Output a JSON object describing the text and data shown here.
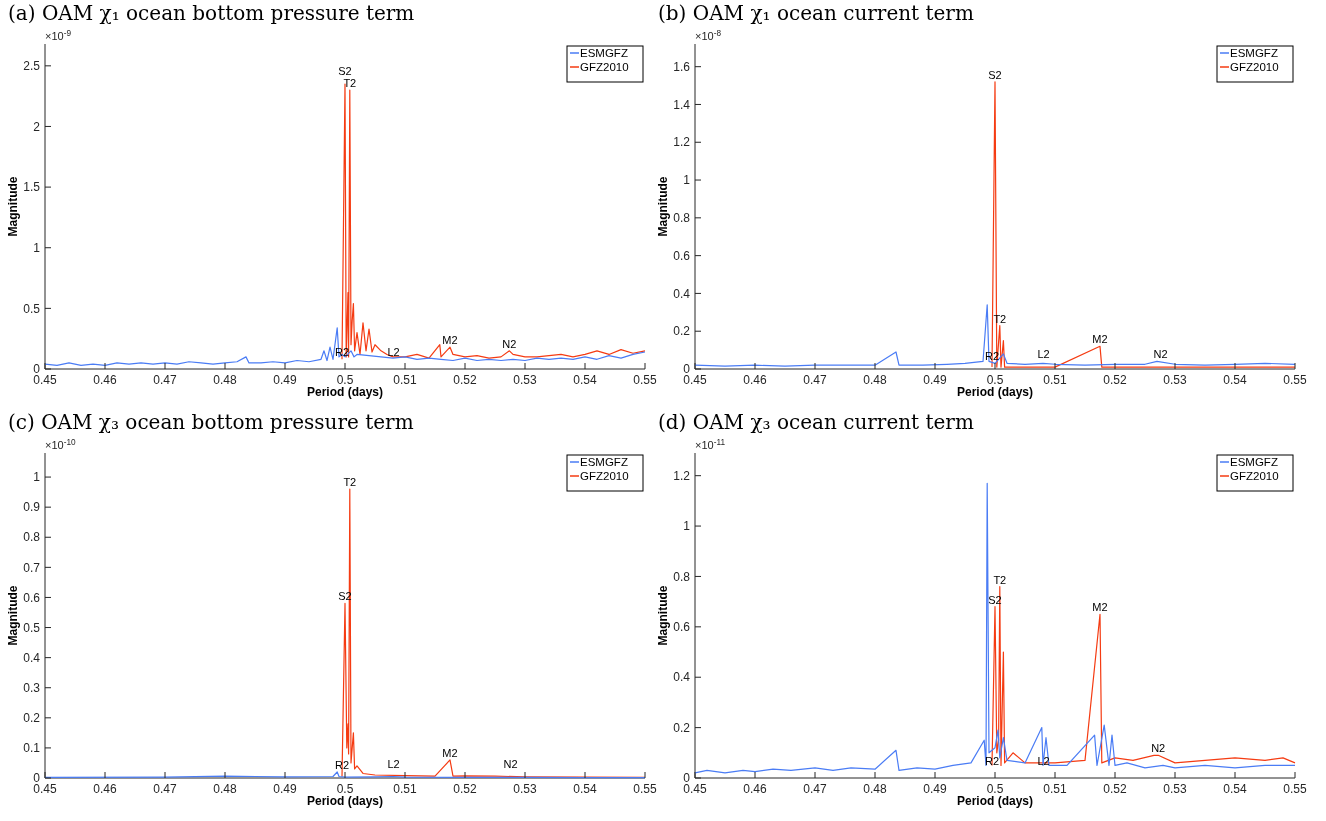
{
  "chart_data": [
    {
      "type": "line",
      "title": "(a) OAM χ₁ ocean bottom pressure term",
      "xlabel": "Period (days)",
      "ylabel": "Magnitude",
      "xlim": [
        0.45,
        0.55
      ],
      "xticks": [
        0.45,
        0.46,
        0.47,
        0.48,
        0.49,
        0.5,
        0.51,
        0.52,
        0.53,
        0.54,
        0.55
      ],
      "ylim": [
        0,
        2.68
      ],
      "yticks": [
        0,
        0.5,
        1,
        1.5,
        2,
        2.5
      ],
      "legend": "top right",
      "series": [
        {
          "name": "ESMGFZ",
          "color": "#4a7cf5",
          "x": [
            0.45,
            0.452,
            0.454,
            0.456,
            0.458,
            0.46,
            0.462,
            0.464,
            0.466,
            0.468,
            0.47,
            0.472,
            0.474,
            0.476,
            0.478,
            0.48,
            0.482,
            0.4835,
            0.484,
            0.486,
            0.488,
            0.49,
            0.492,
            0.494,
            0.496,
            0.4965,
            0.497,
            0.4975,
            0.498,
            0.4987,
            0.499,
            0.4995,
            0.5,
            0.501,
            0.5015,
            0.502,
            0.504,
            0.506,
            0.508,
            0.51,
            0.512,
            0.514,
            0.516,
            0.518,
            0.52,
            0.522,
            0.524,
            0.526,
            0.528,
            0.53,
            0.532,
            0.534,
            0.536,
            0.538,
            0.54,
            0.542,
            0.544,
            0.546,
            0.548,
            0.55
          ],
          "values": [
            0.04,
            0.03,
            0.05,
            0.03,
            0.04,
            0.03,
            0.05,
            0.04,
            0.05,
            0.04,
            0.05,
            0.04,
            0.06,
            0.05,
            0.04,
            0.05,
            0.06,
            0.1,
            0.05,
            0.05,
            0.06,
            0.05,
            0.07,
            0.06,
            0.08,
            0.15,
            0.07,
            0.18,
            0.08,
            0.34,
            0.1,
            0.12,
            0.1,
            0.15,
            0.1,
            0.12,
            0.11,
            0.1,
            0.09,
            0.1,
            0.08,
            0.09,
            0.08,
            0.07,
            0.09,
            0.07,
            0.08,
            0.07,
            0.08,
            0.07,
            0.09,
            0.08,
            0.09,
            0.08,
            0.1,
            0.08,
            0.11,
            0.09,
            0.12,
            0.14
          ]
        },
        {
          "name": "GFZ2010",
          "color": "#f53b12",
          "x": [
            0.4995,
            0.5,
            0.5002,
            0.5005,
            0.5006,
            0.5008,
            0.501,
            0.5012,
            0.5014,
            0.5016,
            0.502,
            0.5025,
            0.503,
            0.5035,
            0.504,
            0.5045,
            0.505,
            0.506,
            0.507,
            0.508,
            0.51,
            0.512,
            0.514,
            0.5158,
            0.516,
            0.5175,
            0.518,
            0.52,
            0.522,
            0.524,
            0.526,
            0.5274,
            0.528,
            0.53,
            0.532,
            0.534,
            0.536,
            0.538,
            0.54,
            0.542,
            0.544,
            0.546,
            0.548,
            0.55
          ],
          "values": [
            0.08,
            2.35,
            0.1,
            0.63,
            0.1,
            2.3,
            0.2,
            0.4,
            0.54,
            0.15,
            0.3,
            0.12,
            0.38,
            0.15,
            0.33,
            0.14,
            0.2,
            0.15,
            0.12,
            0.1,
            0.1,
            0.12,
            0.09,
            0.2,
            0.1,
            0.18,
            0.12,
            0.1,
            0.11,
            0.09,
            0.1,
            0.15,
            0.12,
            0.1,
            0.1,
            0.11,
            0.12,
            0.1,
            0.12,
            0.15,
            0.12,
            0.16,
            0.13,
            0.15
          ]
        }
      ],
      "annotations": [
        "×10$^{-9}$",
        {
          "text": "S2",
          "x": 0.5,
          "y": 2.35
        },
        {
          "text": "T2",
          "x": 0.5008,
          "y": 2.3
        },
        {
          "text": "R2",
          "x": 0.4995,
          "y": 0.08
        },
        {
          "text": "L2",
          "x": 0.5081,
          "y": 0.08
        },
        {
          "text": "M2",
          "x": 0.5175,
          "y": 0.18
        },
        {
          "text": "N2",
          "x": 0.5274,
          "y": 0.15
        }
      ]
    },
    {
      "type": "line",
      "title": "(b) OAM χ₁ ocean current term",
      "xlabel": "Period (days)",
      "ylabel": "Magnitude",
      "xlim": [
        0.45,
        0.55
      ],
      "xticks": [
        0.45,
        0.46,
        0.47,
        0.48,
        0.49,
        0.5,
        0.51,
        0.52,
        0.53,
        0.54,
        0.55
      ],
      "ylim": [
        0,
        1.72
      ],
      "yticks": [
        0,
        0.2,
        0.4,
        0.6,
        0.8,
        1,
        1.2,
        1.4,
        1.6
      ],
      "legend": "top right",
      "series": [
        {
          "name": "ESMGFZ",
          "color": "#4a7cf5",
          "x": [
            0.45,
            0.455,
            0.46,
            0.465,
            0.47,
            0.475,
            0.48,
            0.4835,
            0.484,
            0.488,
            0.492,
            0.495,
            0.498,
            0.4987,
            0.499,
            0.5,
            0.5014,
            0.502,
            0.505,
            0.508,
            0.51,
            0.515,
            0.52,
            0.525,
            0.527,
            0.53,
            0.535,
            0.54,
            0.545,
            0.55
          ],
          "values": [
            0.02,
            0.015,
            0.02,
            0.015,
            0.02,
            0.02,
            0.02,
            0.09,
            0.02,
            0.02,
            0.025,
            0.03,
            0.04,
            0.34,
            0.04,
            0.03,
            0.08,
            0.03,
            0.025,
            0.03,
            0.025,
            0.02,
            0.025,
            0.025,
            0.04,
            0.025,
            0.02,
            0.025,
            0.03,
            0.025
          ]
        },
        {
          "name": "GFZ2010",
          "color": "#f53b12",
          "x": [
            0.4995,
            0.5,
            0.5003,
            0.5008,
            0.501,
            0.5014,
            0.5016,
            0.505,
            0.51,
            0.5175,
            0.5178,
            0.52,
            0.53,
            0.54,
            0.55
          ],
          "values": [
            0.01,
            1.52,
            0.01,
            0.23,
            0.01,
            0.15,
            0.01,
            0.01,
            0.01,
            0.12,
            0.01,
            0.01,
            0.01,
            0.01,
            0.01
          ]
        }
      ],
      "annotations": [
        "×10$^{-8}$",
        {
          "text": "S2",
          "x": 0.5,
          "y": 1.52
        },
        {
          "text": "T2",
          "x": 0.5008,
          "y": 0.23
        },
        {
          "text": "R2",
          "x": 0.4995,
          "y": 0.03
        },
        {
          "text": "L2",
          "x": 0.5081,
          "y": 0.04
        },
        {
          "text": "M2",
          "x": 0.5175,
          "y": 0.12
        },
        {
          "text": "N2",
          "x": 0.5276,
          "y": 0.04
        }
      ]
    },
    {
      "type": "line",
      "title": "(c) OAM χ₃ ocean bottom pressure term",
      "xlabel": "Period (days)",
      "ylabel": "Magnitude",
      "xlim": [
        0.45,
        0.55
      ],
      "xticks": [
        0.45,
        0.46,
        0.47,
        0.48,
        0.49,
        0.5,
        0.51,
        0.52,
        0.53,
        0.54,
        0.55
      ],
      "ylim": [
        0,
        1.08
      ],
      "yticks": [
        0,
        0.1,
        0.2,
        0.3,
        0.4,
        0.5,
        0.6,
        0.7,
        0.8,
        0.9,
        1
      ],
      "legend": "top right",
      "series": [
        {
          "name": "ESMGFZ",
          "color": "#4a7cf5",
          "x": [
            0.45,
            0.47,
            0.48,
            0.49,
            0.498,
            0.4987,
            0.499,
            0.5,
            0.505,
            0.508,
            0.51,
            0.52,
            0.53,
            0.54,
            0.55
          ],
          "values": [
            0.002,
            0.003,
            0.006,
            0.004,
            0.005,
            0.02,
            0.005,
            0.003,
            0.004,
            0.005,
            0.003,
            0.002,
            0.002,
            0.001,
            0.001
          ]
        },
        {
          "name": "GFZ2010",
          "color": "#f53b12",
          "x": [
            0.4995,
            0.5,
            0.5003,
            0.5005,
            0.5006,
            0.5008,
            0.501,
            0.5014,
            0.5016,
            0.502,
            0.503,
            0.505,
            0.51,
            0.515,
            0.5175,
            0.518,
            0.52,
            0.525,
            0.53,
            0.54,
            0.55
          ],
          "values": [
            0.005,
            0.58,
            0.1,
            0.18,
            0.08,
            0.96,
            0.05,
            0.15,
            0.03,
            0.04,
            0.015,
            0.01,
            0.008,
            0.006,
            0.06,
            0.006,
            0.007,
            0.006,
            0.004,
            0.003,
            0.002
          ]
        }
      ],
      "annotations": [
        "×10$^{-10}$",
        {
          "text": "T2",
          "x": 0.5008,
          "y": 0.96
        },
        {
          "text": "S2",
          "x": 0.5,
          "y": 0.58
        },
        {
          "text": "R2",
          "x": 0.4995,
          "y": 0.02
        },
        {
          "text": "L2",
          "x": 0.5081,
          "y": 0.023
        },
        {
          "text": "M2",
          "x": 0.5175,
          "y": 0.06
        },
        {
          "text": "N2",
          "x": 0.5276,
          "y": 0.023
        }
      ]
    },
    {
      "type": "line",
      "title": "(d) OAM χ₃ ocean current term",
      "xlabel": "Period (days)",
      "ylabel": "Magnitude",
      "xlim": [
        0.45,
        0.55
      ],
      "xticks": [
        0.45,
        0.46,
        0.47,
        0.48,
        0.49,
        0.5,
        0.51,
        0.52,
        0.53,
        0.54,
        0.55
      ],
      "ylim": [
        0,
        1.29
      ],
      "yticks": [
        0,
        0.2,
        0.4,
        0.6,
        0.8,
        1,
        1.2
      ],
      "legend": "top right",
      "series": [
        {
          "name": "ESMGFZ",
          "color": "#4a7cf5",
          "x": [
            0.45,
            0.452,
            0.455,
            0.458,
            0.46,
            0.463,
            0.466,
            0.47,
            0.473,
            0.476,
            0.48,
            0.4835,
            0.484,
            0.487,
            0.49,
            0.493,
            0.496,
            0.4982,
            0.4985,
            0.4987,
            0.499,
            0.5,
            0.5005,
            0.5008,
            0.5014,
            0.502,
            0.505,
            0.5078,
            0.508,
            0.5085,
            0.509,
            0.512,
            0.5166,
            0.517,
            0.5182,
            0.519,
            0.5195,
            0.52,
            0.522,
            0.525,
            0.528,
            0.53,
            0.535,
            0.54,
            0.545,
            0.55
          ],
          "values": [
            0.02,
            0.03,
            0.02,
            0.03,
            0.025,
            0.035,
            0.03,
            0.04,
            0.03,
            0.04,
            0.035,
            0.11,
            0.03,
            0.04,
            0.035,
            0.05,
            0.06,
            0.15,
            0.05,
            1.17,
            0.1,
            0.12,
            0.19,
            0.08,
            0.16,
            0.07,
            0.06,
            0.2,
            0.05,
            0.16,
            0.05,
            0.05,
            0.17,
            0.05,
            0.21,
            0.05,
            0.17,
            0.05,
            0.06,
            0.04,
            0.05,
            0.04,
            0.05,
            0.04,
            0.05,
            0.05
          ]
        },
        {
          "name": "GFZ2010",
          "color": "#f53b12",
          "x": [
            0.4995,
            0.5,
            0.5003,
            0.5006,
            0.5008,
            0.501,
            0.5014,
            0.5016,
            0.503,
            0.505,
            0.51,
            0.515,
            0.5175,
            0.5178,
            0.52,
            0.523,
            0.5265,
            0.5272,
            0.53,
            0.535,
            0.54,
            0.545,
            0.548,
            0.55
          ],
          "values": [
            0.05,
            0.68,
            0.1,
            0.15,
            0.76,
            0.05,
            0.5,
            0.06,
            0.1,
            0.06,
            0.06,
            0.07,
            0.65,
            0.06,
            0.08,
            0.07,
            0.09,
            0.09,
            0.06,
            0.07,
            0.08,
            0.07,
            0.08,
            0.06
          ]
        }
      ],
      "annotations": [
        "×10$^{-11}$",
        {
          "text": "T2",
          "x": 0.5008,
          "y": 0.76
        },
        {
          "text": "S2",
          "x": 0.5,
          "y": 0.68
        },
        {
          "text": "M2",
          "x": 0.5175,
          "y": 0.65
        },
        {
          "text": "N2",
          "x": 0.5272,
          "y": 0.09
        },
        {
          "text": "R2",
          "x": 0.4995,
          "y": 0.04
        },
        {
          "text": "L2",
          "x": 0.5081,
          "y": 0.04
        }
      ]
    }
  ]
}
